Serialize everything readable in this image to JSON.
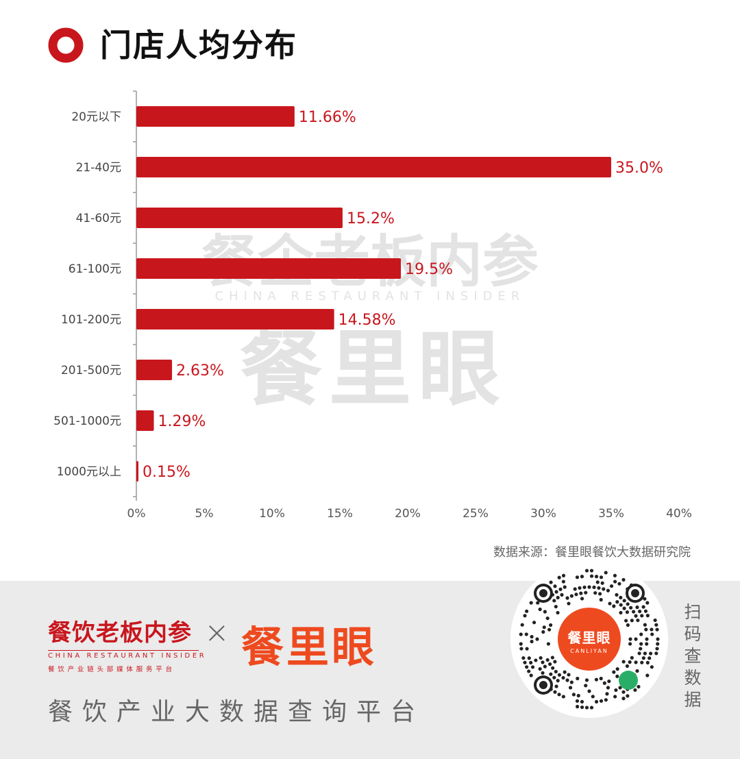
{
  "header": {
    "title": "门店人均分布"
  },
  "chart_data": {
    "type": "bar",
    "orientation": "horizontal",
    "categories": [
      "20元以下",
      "21-40元",
      "41-60元",
      "61-100元",
      "101-200元",
      "201-500元",
      "501-1000元",
      "1000元以上"
    ],
    "values": [
      11.66,
      35.0,
      15.2,
      19.5,
      14.58,
      2.63,
      1.29,
      0.15
    ],
    "value_labels": [
      "11.66%",
      "35.0%",
      "15.2%",
      "19.5%",
      "14.58%",
      "2.63%",
      "1.29%",
      "0.15%"
    ],
    "xlim": [
      0,
      40
    ],
    "xticks": [
      0,
      5,
      10,
      15,
      20,
      25,
      30,
      35,
      40
    ],
    "xtick_labels": [
      "0%",
      "5%",
      "10%",
      "15%",
      "20%",
      "25%",
      "30%",
      "35%",
      "40%"
    ],
    "bar_color": "#c8161d",
    "grid": false
  },
  "source": "数据来源：餐里眼餐饮大数据研究院",
  "watermark": {
    "line1": "餐企老板内参",
    "line2": "CHINA RESTAURANT INSIDER",
    "line3": "餐里眼"
  },
  "footer": {
    "brand1": "餐饮老板内参",
    "brand1_en": "CHINA RESTAURANT INSIDER",
    "brand1_sub": "餐饮产业链头部媒体服务平台",
    "times": "×",
    "brand2": "餐里眼",
    "tagline": "餐饮产业大数据查询平台",
    "qr_center": "餐里眼",
    "qr_center_en": "CANLIYAN",
    "scan_text": "扫码查数据"
  },
  "colors": {
    "accent": "#c8161d",
    "brand_orange": "#ee4a1f"
  }
}
